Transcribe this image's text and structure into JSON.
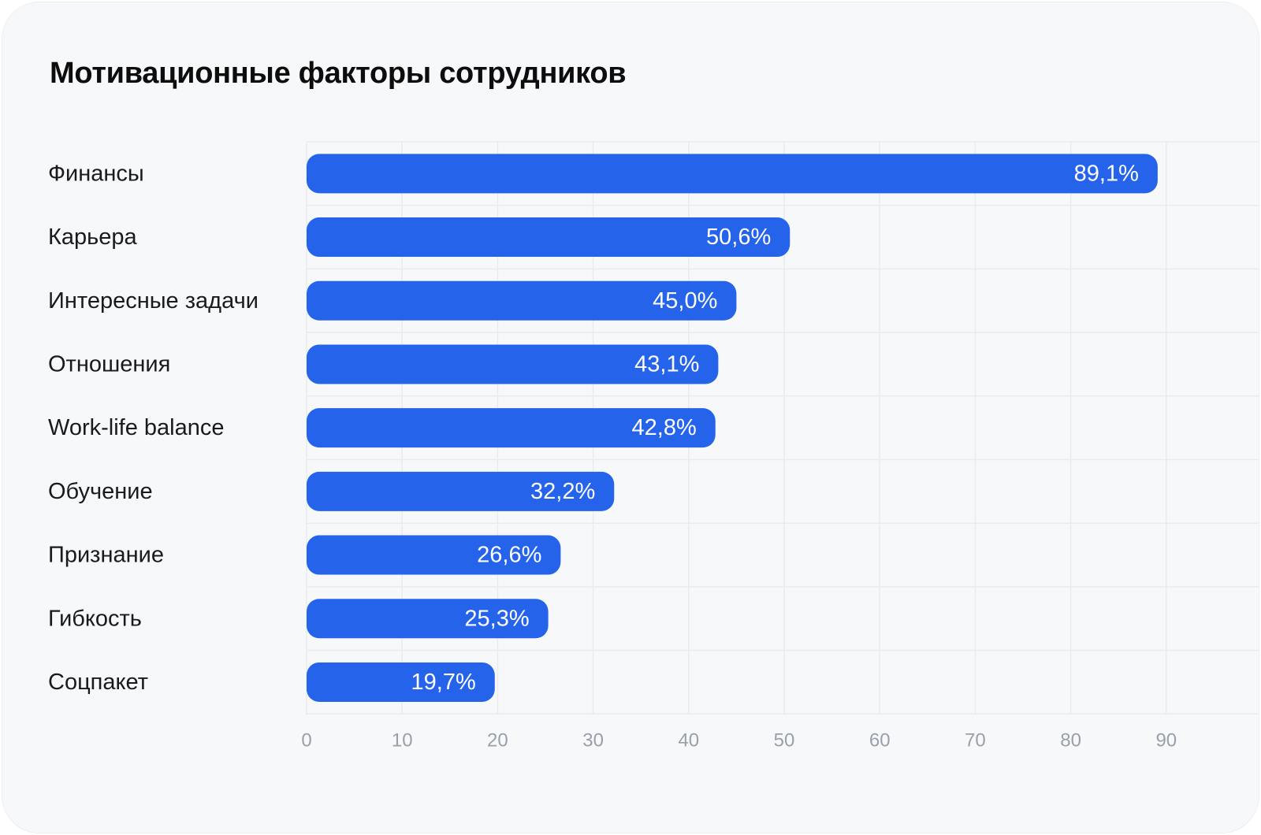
{
  "chart_data": {
    "type": "bar",
    "orientation": "horizontal",
    "title": "Мотивационные факторы сотрудников",
    "categories": [
      "Финансы",
      "Карьера",
      "Интересные задачи",
      "Отношения",
      "Work-life balance",
      "Обучение",
      "Признание",
      "Гибкость",
      "Соцпакет"
    ],
    "values": [
      89.1,
      50.6,
      45.0,
      43.1,
      42.8,
      32.2,
      26.6,
      25.3,
      19.7
    ],
    "value_labels": [
      "89,1%",
      "50,6%",
      "45,0%",
      "43,1%",
      "42,8%",
      "32,2%",
      "26,6%",
      "25,3%",
      "19,7%"
    ],
    "x_ticks": [
      0,
      10,
      20,
      30,
      40,
      50,
      60,
      70,
      80,
      90
    ],
    "xlim": [
      0,
      100
    ],
    "xlabel": "",
    "ylabel": "",
    "grid": true,
    "bar_color": "#2563eb",
    "grid_color": "#e9ebef",
    "tick_color": "#9aa0aa"
  }
}
